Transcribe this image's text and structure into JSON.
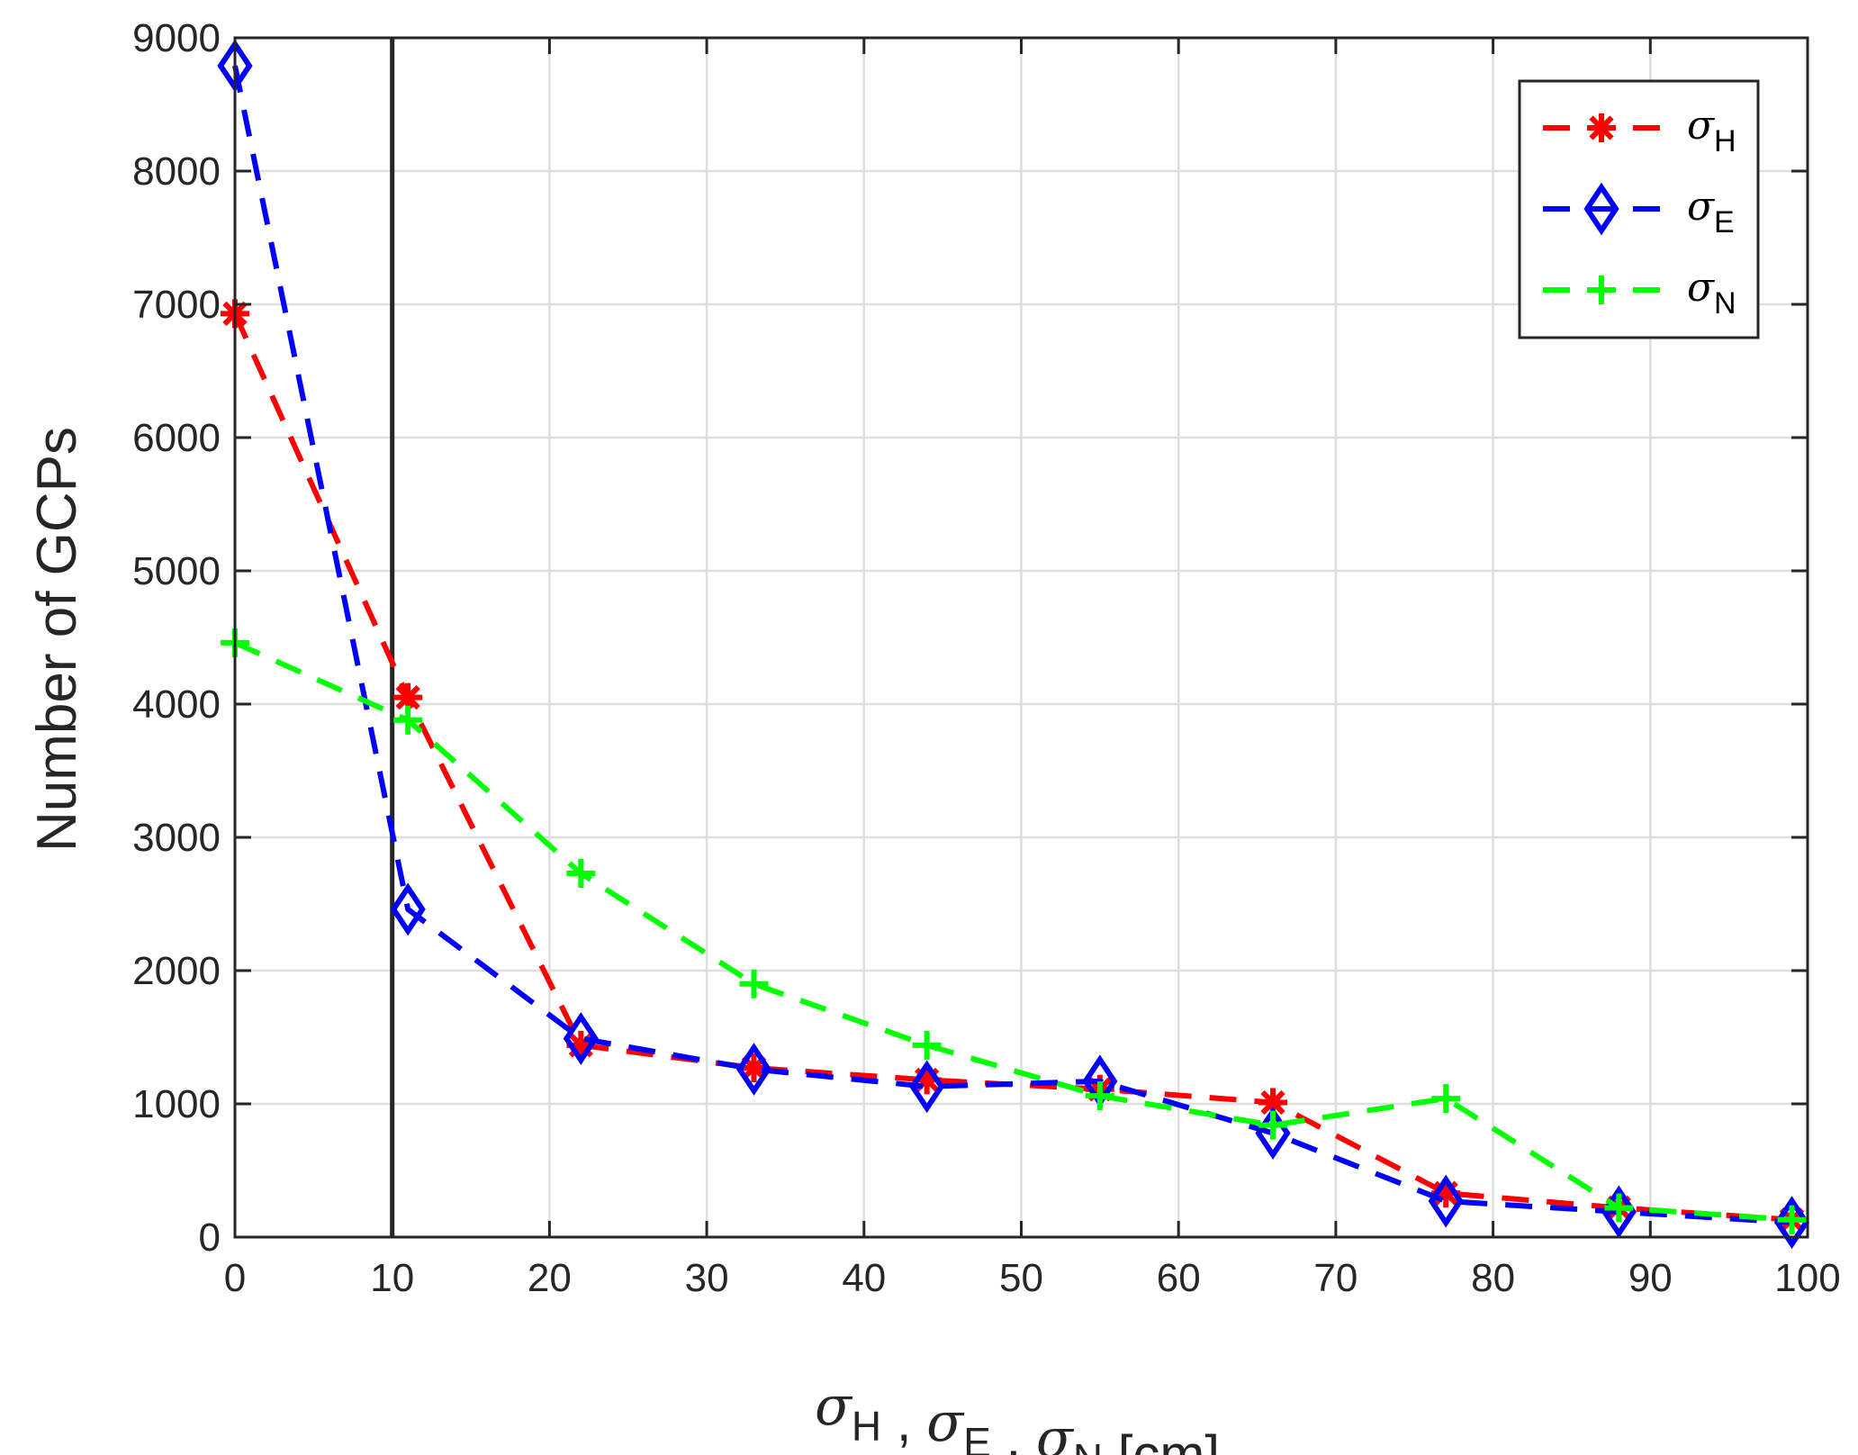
{
  "chart_data": {
    "type": "line",
    "title": "",
    "xlabel": "σH , σE , σN [cm]",
    "xlabel_parts": [
      {
        "sym": "σ",
        "sub": "H"
      },
      {
        "sep": " , "
      },
      {
        "sym": "σ",
        "sub": "E"
      },
      {
        "sep": " , "
      },
      {
        "sym": "σ",
        "sub": "N"
      },
      {
        "unit": " [cm]"
      }
    ],
    "ylabel": "Number of GCPs",
    "xlim": [
      0,
      100
    ],
    "ylim": [
      0,
      9000
    ],
    "xticks": [
      0,
      10,
      20,
      30,
      40,
      50,
      60,
      70,
      80,
      90,
      100
    ],
    "yticks": [
      0,
      1000,
      2000,
      3000,
      4000,
      5000,
      6000,
      7000,
      8000,
      9000
    ],
    "xtick_labels": [
      "0",
      "10",
      "20",
      "30",
      "40",
      "50",
      "60",
      "70",
      "80",
      "90",
      "100"
    ],
    "ytick_labels": [
      "0",
      "1000",
      "2000",
      "3000",
      "4000",
      "5000",
      "6000",
      "7000",
      "8000",
      "9000"
    ],
    "grid": true,
    "legend_position": "top-right",
    "vertical_line_x": 10,
    "x": [
      0,
      11,
      22,
      33,
      44,
      55,
      66,
      77,
      88,
      99
    ],
    "series": [
      {
        "name": "σH",
        "label_sym": "σ",
        "label_sub": "H",
        "color": "#ff0000",
        "marker": "asterisk",
        "values": [
          6930,
          4050,
          1440,
          1270,
          1180,
          1110,
          1010,
          330,
          220,
          130
        ]
      },
      {
        "name": "σE",
        "label_sym": "σ",
        "label_sub": "E",
        "color": "#0000ff",
        "marker": "diamond",
        "values": [
          8790,
          2460,
          1490,
          1260,
          1130,
          1170,
          780,
          270,
          190,
          110
        ]
      },
      {
        "name": "σN",
        "label_sym": "σ",
        "label_sub": "N",
        "color": "#00ff00",
        "marker": "plus",
        "values": [
          4460,
          3880,
          2730,
          1900,
          1440,
          1060,
          840,
          1040,
          220,
          130
        ]
      }
    ]
  }
}
